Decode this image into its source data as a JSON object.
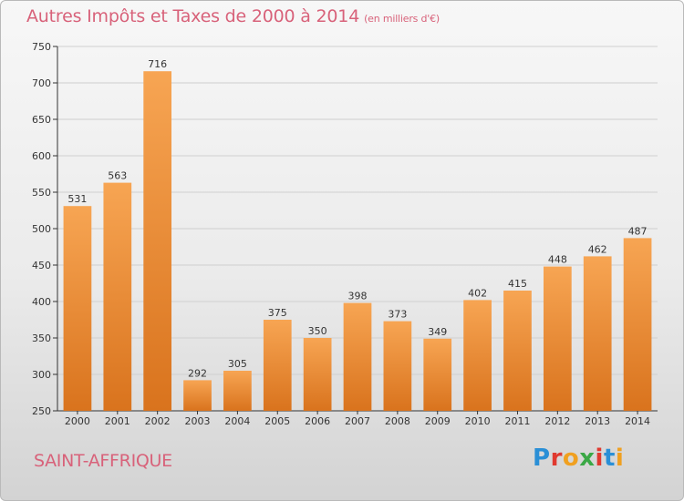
{
  "title": {
    "main": "Autres Impôts et Taxes de 2000 à 2014",
    "unit": "(en milliers d'€)"
  },
  "commune": "SAINT-AFFRIQUE",
  "logo": {
    "text": "Proxiti",
    "colors": [
      "#2a8fd6",
      "#e0392f",
      "#f0a020",
      "#3aa845",
      "#e0392f",
      "#2a8fd6",
      "#f0a020"
    ]
  },
  "colors": {
    "bar_top": "#f7a553",
    "bar_bottom": "#d9731d",
    "title": "#d8627a",
    "grid": "#cfcfcf"
  },
  "chart_data": {
    "type": "bar",
    "categories": [
      "2000",
      "2001",
      "2002",
      "2003",
      "2004",
      "2005",
      "2006",
      "2007",
      "2008",
      "2009",
      "2010",
      "2011",
      "2012",
      "2013",
      "2014"
    ],
    "values": [
      531,
      563,
      716,
      292,
      305,
      375,
      350,
      398,
      373,
      349,
      402,
      415,
      448,
      462,
      487
    ],
    "ylim": [
      250,
      750
    ],
    "yticks": [
      250,
      300,
      350,
      400,
      450,
      500,
      550,
      600,
      650,
      700,
      750
    ],
    "grid": true,
    "xlabel": "",
    "ylabel": ""
  }
}
